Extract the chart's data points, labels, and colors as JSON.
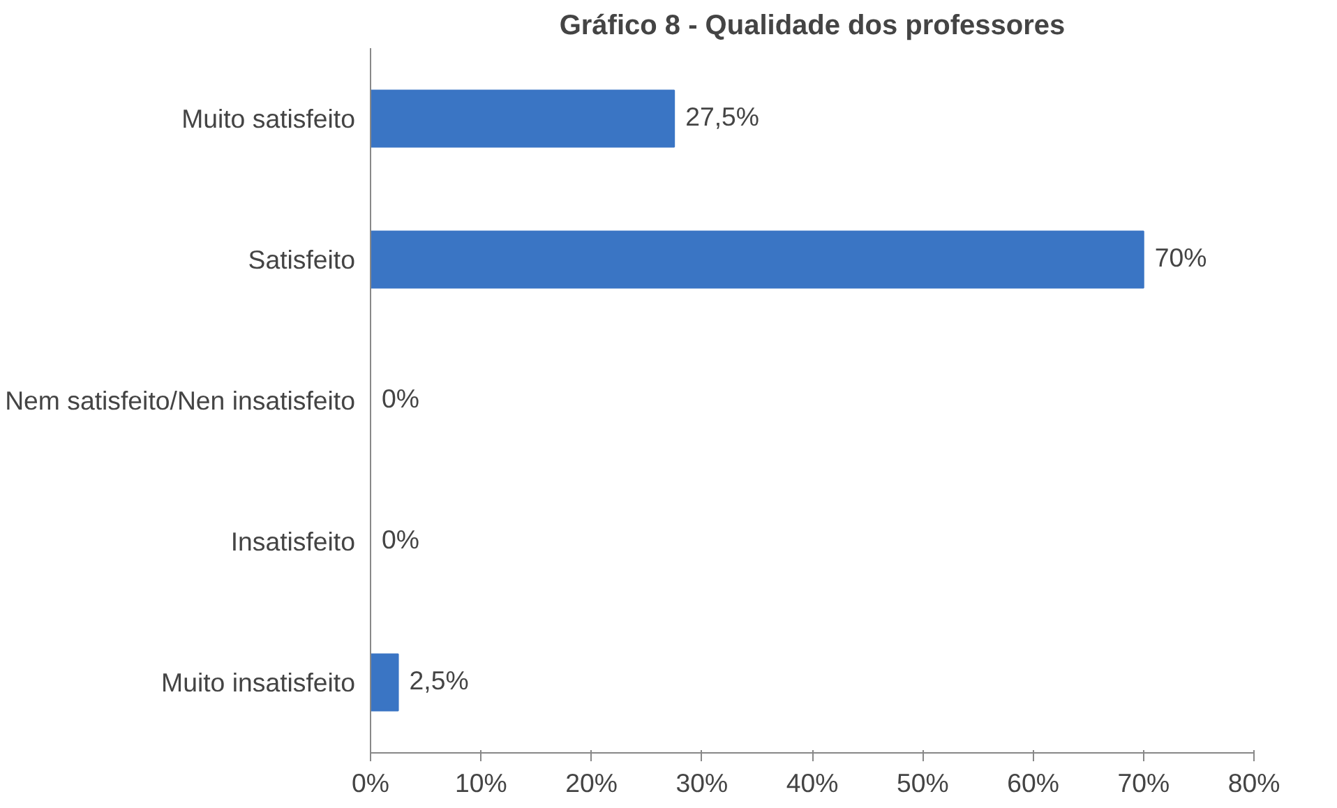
{
  "chart_data": {
    "type": "bar",
    "orientation": "horizontal",
    "title": "Gráfico 8 - Qualidade dos professores",
    "categories": [
      "Muito satisfeito",
      "Satisfeito",
      "Nem satisfeito/Nen insatisfeito",
      "Insatisfeito",
      "Muito insatisfeito"
    ],
    "values": [
      27.5,
      70,
      0,
      0,
      2.5
    ],
    "value_labels": [
      "27,5%",
      "70%",
      "0%",
      "0%",
      "2,5%"
    ],
    "color": "#3a75c4",
    "xlim": [
      0,
      80
    ],
    "xticks": [
      {
        "value": 0,
        "label": "0%"
      },
      {
        "value": 10,
        "label": "10%"
      },
      {
        "value": 20,
        "label": "20%"
      },
      {
        "value": 30,
        "label": "30%"
      },
      {
        "value": 40,
        "label": "40%"
      },
      {
        "value": 50,
        "label": "50%"
      },
      {
        "value": 60,
        "label": "60%"
      },
      {
        "value": 70,
        "label": "70%"
      },
      {
        "value": 80,
        "label": "80%"
      }
    ],
    "grid": false
  }
}
